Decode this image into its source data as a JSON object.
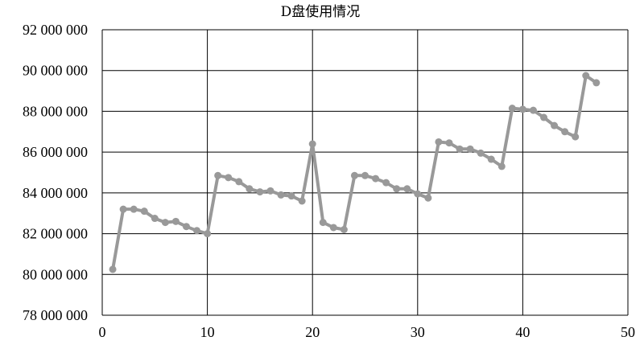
{
  "chart_data": {
    "type": "line",
    "title": "D盘使用情况",
    "xlabel": "",
    "ylabel": "",
    "xlim": [
      0,
      50
    ],
    "ylim": [
      78000000,
      92000000
    ],
    "x_ticks": [
      0,
      10,
      20,
      30,
      40,
      50
    ],
    "x_tick_labels": [
      "0",
      "10",
      "20",
      "30",
      "40",
      "50"
    ],
    "y_ticks": [
      78000000,
      80000000,
      82000000,
      84000000,
      86000000,
      88000000,
      90000000,
      92000000
    ],
    "y_tick_labels": [
      "78 000 000",
      "80 000 000",
      "82 000 000",
      "84 000 000",
      "86 000 000",
      "88 000 000",
      "90 000 000",
      "92 000 000"
    ],
    "grid": true,
    "series": [
      {
        "color": "#999999",
        "x": [
          1,
          2,
          3,
          4,
          5,
          6,
          7,
          8,
          9,
          10,
          11,
          12,
          13,
          14,
          15,
          16,
          17,
          18,
          19,
          20,
          21,
          22,
          23,
          24,
          25,
          26,
          27,
          28,
          29,
          30,
          31,
          32,
          33,
          34,
          35,
          36,
          37,
          38,
          39,
          40,
          41,
          42,
          43,
          44,
          45,
          46,
          47
        ],
        "y": [
          80250000,
          83200000,
          83200000,
          83100000,
          82750000,
          82550000,
          82600000,
          82350000,
          82150000,
          82000000,
          84850000,
          84750000,
          84550000,
          84200000,
          84050000,
          84100000,
          83900000,
          83850000,
          83600000,
          86400000,
          82550000,
          82300000,
          82200000,
          84850000,
          84850000,
          84700000,
          84500000,
          84200000,
          84200000,
          83950000,
          83750000,
          86500000,
          86450000,
          86150000,
          86150000,
          85950000,
          85650000,
          85300000,
          88150000,
          88100000,
          88050000,
          87700000,
          87300000,
          87000000,
          86750000,
          89750000,
          89400000
        ]
      }
    ]
  }
}
